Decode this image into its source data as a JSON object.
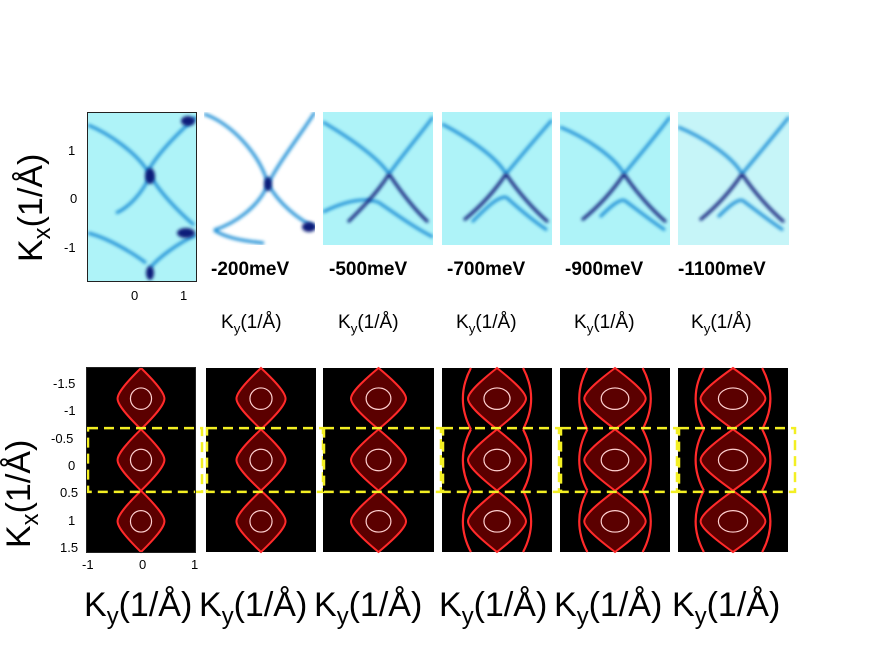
{
  "figure": {
    "top_row": {
      "ylabel_main": "K",
      "ylabel_sub": "x",
      "ylabel_unit": "(1/Å)",
      "yticks": [
        "1",
        "0",
        "-1"
      ],
      "xticks": [
        "0",
        "1"
      ],
      "energy_labels": [
        "-200meV",
        "-500meV",
        "-700meV",
        "-900meV",
        "-1100meV"
      ],
      "xlabel_main": "K",
      "xlabel_sub": "y",
      "xlabel_unit": "(1/Å)",
      "colormap": [
        "#ffffff",
        "#aef3f8",
        "#1f8fd6",
        "#0a1f7a"
      ]
    },
    "bottom_row": {
      "ylabel_main": "K",
      "ylabel_sub": "x",
      "ylabel_unit": "(1/Å)",
      "yticks": [
        "-1.5",
        "-1",
        "-0.5",
        "0",
        "0.5",
        "1",
        "1.5"
      ],
      "xticks": [
        "-1",
        "0",
        "1"
      ],
      "xlabel_main": "K",
      "xlabel_sub": "y",
      "xlabel_unit": "(1/Å)",
      "colormap": [
        "#000000",
        "#7a0000",
        "#ff2a2a",
        "#ffd0d0"
      ],
      "highlight_color": "#f3ef23"
    }
  }
}
